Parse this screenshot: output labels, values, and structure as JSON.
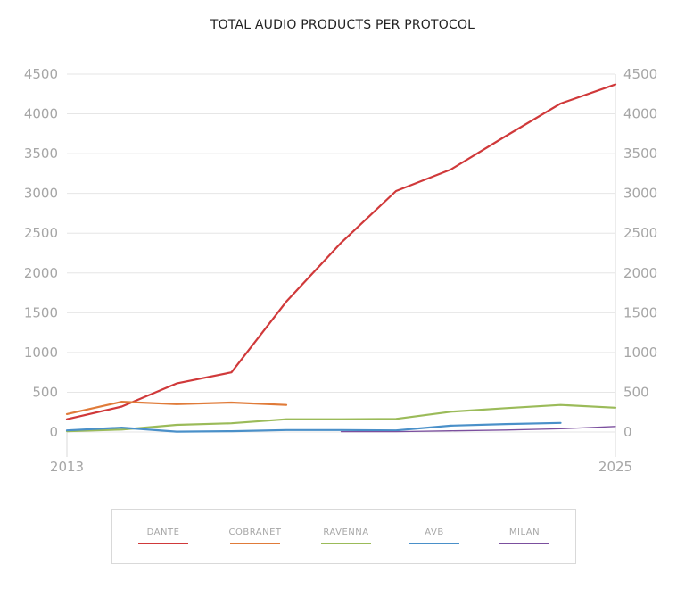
{
  "chart_data": {
    "type": "line",
    "title": "TOTAL AUDIO PRODUCTS PER PROTOCOL",
    "x_tick_labels": [
      "2013",
      "2025"
    ],
    "ylim": [
      0,
      4500
    ],
    "y_ticks": [
      0,
      500,
      1000,
      1500,
      2000,
      2500,
      3000,
      3500,
      4000,
      4500
    ],
    "secondary_y_ticks": [
      0,
      500,
      1000,
      1500,
      2000,
      2500,
      3000,
      3500,
      4000,
      4500
    ],
    "grid": true,
    "legend_position": "bottom",
    "x": [
      2013,
      2014,
      2015,
      2016,
      2017,
      2018,
      2019,
      2020,
      2021,
      2022,
      2023
    ],
    "series": [
      {
        "name": "DANTE",
        "color": "#d0393a",
        "values": [
          160,
          320,
          610,
          750,
          1640,
          2380,
          3030,
          3300,
          3720,
          4130,
          4370
        ]
      },
      {
        "name": "COBRANET",
        "color": "#e07b39",
        "values": [
          225,
          380,
          350,
          370,
          340,
          null,
          null,
          null,
          null,
          null,
          null
        ]
      },
      {
        "name": "RAVENNA",
        "color": "#9bbb59",
        "values": [
          10,
          30,
          90,
          110,
          160,
          160,
          165,
          255,
          300,
          340,
          305
        ]
      },
      {
        "name": "AVB",
        "color": "#4a90c9",
        "values": [
          20,
          55,
          5,
          10,
          25,
          25,
          20,
          80,
          100,
          115,
          null
        ]
      },
      {
        "name": "MILAN",
        "color": "#7b4f9e",
        "values": [
          null,
          null,
          null,
          null,
          null,
          5,
          5,
          15,
          25,
          40,
          70
        ]
      }
    ]
  }
}
